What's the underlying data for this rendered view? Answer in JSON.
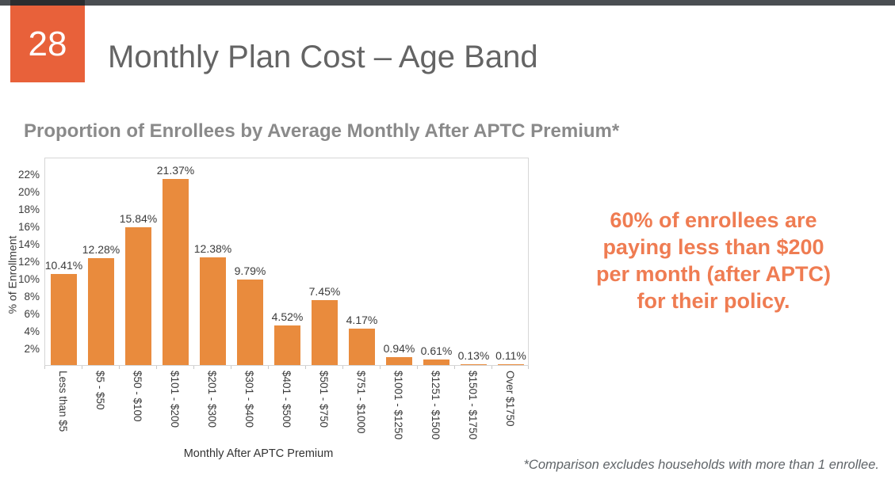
{
  "slide": {
    "number": "28",
    "title": "Monthly Plan Cost – Age Band",
    "subtitle": "Proportion of Enrollees by Average Monthly After APTC Premium*",
    "callout": {
      "lines": [
        "60% of enrollees are",
        "paying less than $200",
        "per month (after APTC)",
        "for their policy."
      ]
    },
    "footnote": "*Comparison excludes households with more than 1 enrollee."
  },
  "colors": {
    "top_bar_gray": "#4A4E52",
    "top_bar_dark_segment": "#2B2D2F",
    "slide_number_box_orange": "#E8613A",
    "title_gray": "#646464",
    "subtitle_gray": "#8A8A8A",
    "bar_orange": "#E98B3D",
    "callout_orange": "#EF7C52",
    "axis_text": "#3B3B3B",
    "plot_border": "#D6D6D6",
    "footnote_gray": "#5F6468"
  },
  "chart_data": {
    "type": "bar",
    "title": "Proportion of Enrollees by Average Monthly After APTC Premium*",
    "categories": [
      "Less than $5",
      "$5 - $50",
      "$50 - $100",
      "$101 - $200",
      "$201 - $300",
      "$301 - $400",
      "$401 - $500",
      "$501 - $750",
      "$751 - $1000",
      "$1001 - $1250",
      "$1251 - $1500",
      "$1501 - $1750",
      "Over $1750"
    ],
    "values": [
      10.41,
      12.28,
      15.84,
      21.37,
      12.38,
      9.79,
      4.52,
      7.45,
      4.17,
      0.94,
      0.61,
      0.13,
      0.11
    ],
    "value_labels": [
      "10.41%",
      "12.28%",
      "15.84%",
      "21.37%",
      "12.38%",
      "9.79%",
      "4.52%",
      "7.45%",
      "4.17%",
      "0.94%",
      "0.61%",
      "0.13%",
      "0.11%"
    ],
    "xlabel": "Monthly After APTC Premium",
    "ylabel": "% of Enrollment",
    "ylim": [
      0,
      23.9
    ],
    "yticks": [
      2,
      4,
      6,
      8,
      10,
      12,
      14,
      16,
      18,
      20,
      22
    ],
    "ytick_suffix": "%",
    "grid": false,
    "legend": false,
    "bar_color": "#E98B3D"
  }
}
